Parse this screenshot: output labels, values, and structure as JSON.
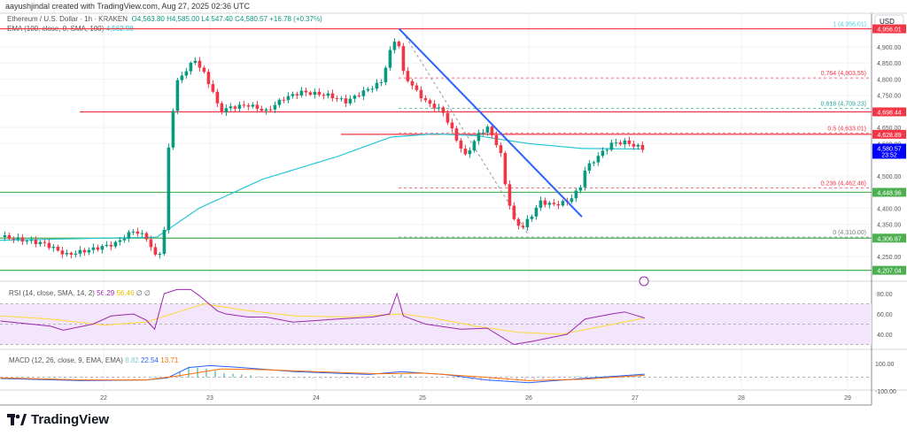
{
  "header": {
    "credit": "aayushjindal created with TradingView.com, Aug 27, 2025 02:36 UTC"
  },
  "legend": {
    "symbol": "Ethereum / U.S. Dollar · 1h · KRAKEN",
    "open": "O4,563.80",
    "high": "H4,585.00",
    "low": "L4,547.40",
    "close": "C4,580.57",
    "change": "+16.78 (+0.37%)",
    "ema_label": "EMA (100, close, 0, SMA, 100)",
    "ema_value": "4,562.98"
  },
  "rsi_legend": {
    "label": "RSI (14, close, SMA, 14, 2)",
    "rsi": "56.29",
    "sma": "56.46",
    "extra1": "∅",
    "extra2": "∅"
  },
  "macd_legend": {
    "label": "MACD (12, 26, close, 9, EMA, EMA)",
    "hist": "8.82",
    "macd": "22.54",
    "signal": "13.71"
  },
  "price_axis": {
    "currency": "USD",
    "ticks": [
      "4,900.00",
      "4,850.00",
      "4,800.00",
      "4,750.00",
      "4,650.00",
      "4,600.00",
      "4,500.00",
      "4,400.00",
      "4,350.00",
      "4,250.00"
    ],
    "tick_values": [
      4900,
      4850,
      4800,
      4750,
      4650,
      4600,
      4500,
      4400,
      4350,
      4250
    ]
  },
  "rsi_axis": {
    "ticks": [
      "80.00",
      "60.00",
      "40.00"
    ],
    "values": [
      80,
      60,
      40
    ]
  },
  "macd_axis": {
    "ticks": [
      "100.00",
      "-100.00"
    ],
    "values": [
      100,
      -100
    ]
  },
  "time_axis": {
    "ticks": [
      "22",
      "23",
      "24",
      "25",
      "26",
      "27",
      "28",
      "29"
    ]
  },
  "colors": {
    "up": "#089981",
    "down": "#f23645",
    "ema": "#26c6da",
    "resistance": "#f23645",
    "support": "#4caf50",
    "trendline": "#2962ff",
    "rsi": "#9c27b0",
    "rsi_sma": "#fdd835",
    "macd": "#2962ff",
    "signal": "#ff6d00",
    "last_price": "#0000ff"
  },
  "branding": {
    "logo_text": "TradingView"
  },
  "chart_data": {
    "type": "candlestick",
    "title": "Ethereum / U.S. Dollar · 1h · KRAKEN",
    "ylim": [
      4190,
      4975
    ],
    "xlim": [
      21.0,
      29.2
    ],
    "price_path": [
      [
        21.07,
        4310
      ],
      [
        21.44,
        4290
      ],
      [
        21.65,
        4255
      ],
      [
        21.86,
        4270
      ],
      [
        22.11,
        4290
      ],
      [
        22.28,
        4330
      ],
      [
        22.4,
        4310
      ],
      [
        22.51,
        4235
      ],
      [
        22.57,
        4330
      ],
      [
        22.61,
        4580
      ],
      [
        22.65,
        4700
      ],
      [
        22.69,
        4790
      ],
      [
        22.78,
        4830
      ],
      [
        22.86,
        4860
      ],
      [
        22.94,
        4820
      ],
      [
        23.03,
        4760
      ],
      [
        23.09,
        4700
      ],
      [
        23.19,
        4712
      ],
      [
        23.36,
        4720
      ],
      [
        23.53,
        4700
      ],
      [
        23.69,
        4740
      ],
      [
        23.86,
        4760
      ],
      [
        24.11,
        4750
      ],
      [
        24.28,
        4730
      ],
      [
        24.44,
        4760
      ],
      [
        24.61,
        4790
      ],
      [
        24.69,
        4880
      ],
      [
        24.76,
        4940
      ],
      [
        24.82,
        4820
      ],
      [
        24.9,
        4780
      ],
      [
        25.03,
        4730
      ],
      [
        25.19,
        4700
      ],
      [
        25.28,
        4640
      ],
      [
        25.4,
        4560
      ],
      [
        25.53,
        4630
      ],
      [
        25.61,
        4650
      ],
      [
        25.73,
        4580
      ],
      [
        25.79,
        4450
      ],
      [
        25.86,
        4360
      ],
      [
        25.94,
        4340
      ],
      [
        26.03,
        4380
      ],
      [
        26.11,
        4420
      ],
      [
        26.23,
        4410
      ],
      [
        26.36,
        4420
      ],
      [
        26.48,
        4460
      ],
      [
        26.53,
        4520
      ],
      [
        26.65,
        4560
      ],
      [
        26.78,
        4600
      ],
      [
        26.9,
        4605
      ],
      [
        27.03,
        4590
      ],
      [
        27.09,
        4581
      ]
    ],
    "ema_path": [
      [
        21.0,
        4300
      ],
      [
        22.5,
        4310
      ],
      [
        22.9,
        4400
      ],
      [
        23.5,
        4490
      ],
      [
        24.2,
        4560
      ],
      [
        24.7,
        4620
      ],
      [
        25.1,
        4630
      ],
      [
        25.5,
        4625
      ],
      [
        26.0,
        4600
      ],
      [
        26.5,
        4585
      ],
      [
        27.09,
        4583
      ]
    ],
    "horizontal_levels": [
      {
        "price": 4956.01,
        "label": "4,956.01",
        "type": "resistance"
      },
      {
        "price": 4698.44,
        "label": "4,698.44",
        "type": "resistance"
      },
      {
        "price": 4628.89,
        "label": "4,628.89",
        "type": "resistance"
      },
      {
        "price": 4448.96,
        "label": "4,448.96",
        "type": "support"
      },
      {
        "price": 4306.87,
        "label": "4,306.87",
        "type": "support"
      },
      {
        "price": 4207.04,
        "label": "4,207.04",
        "type": "support"
      }
    ],
    "last_price": {
      "price": 4580.57,
      "label": "4,580.57",
      "countdown": "23:52"
    },
    "fibonacci": [
      {
        "ratio": "1",
        "price": 4956.01,
        "label": "1 (4,956.01)",
        "color": "#4dd0e1"
      },
      {
        "ratio": "0.764",
        "price": 4803.55,
        "label": "0.764 (4,803.55)",
        "color": "#f23645"
      },
      {
        "ratio": "0.618",
        "price": 4709.23,
        "label": "0.618 (4,709.23)",
        "color": "#26a69a"
      },
      {
        "ratio": "0.5",
        "price": 4633.01,
        "label": "0.5 (4,633.01)",
        "color": "#f23645"
      },
      {
        "ratio": "0.236",
        "price": 4462.46,
        "label": "0.236 (4,462.46)",
        "color": "#f23645"
      },
      {
        "ratio": "0",
        "price": 4310.0,
        "label": "0 (4,310.00)",
        "color": "#787b86"
      }
    ],
    "trendline": {
      "start": [
        24.78,
        4956
      ],
      "end": [
        26.5,
        4373
      ]
    },
    "rsi_path": [
      [
        21.03,
        53
      ],
      [
        21.5,
        48
      ],
      [
        21.62,
        44
      ],
      [
        21.9,
        50
      ],
      [
        22.07,
        58
      ],
      [
        22.28,
        60
      ],
      [
        22.4,
        54
      ],
      [
        22.48,
        45
      ],
      [
        22.57,
        80
      ],
      [
        22.69,
        84
      ],
      [
        22.82,
        84
      ],
      [
        22.9,
        78
      ],
      [
        23.07,
        63
      ],
      [
        23.15,
        60
      ],
      [
        23.36,
        57
      ],
      [
        23.53,
        57
      ],
      [
        23.78,
        52
      ],
      [
        24.2,
        55
      ],
      [
        24.53,
        57
      ],
      [
        24.69,
        60
      ],
      [
        24.76,
        80
      ],
      [
        24.82,
        58
      ],
      [
        25.03,
        50
      ],
      [
        25.36,
        45
      ],
      [
        25.61,
        46
      ],
      [
        25.78,
        35
      ],
      [
        25.86,
        30
      ],
      [
        26.03,
        33
      ],
      [
        26.36,
        40
      ],
      [
        26.53,
        55
      ],
      [
        26.78,
        60
      ],
      [
        26.9,
        62
      ],
      [
        27.03,
        58
      ],
      [
        27.09,
        56
      ]
    ],
    "rsi_sma_path": [
      [
        21.03,
        58
      ],
      [
        21.5,
        55
      ],
      [
        22.0,
        49
      ],
      [
        22.4,
        52
      ],
      [
        22.7,
        62
      ],
      [
        22.95,
        70
      ],
      [
        23.3,
        64
      ],
      [
        23.8,
        58
      ],
      [
        24.3,
        57
      ],
      [
        24.8,
        60
      ],
      [
        25.1,
        56
      ],
      [
        25.5,
        48
      ],
      [
        25.9,
        42
      ],
      [
        26.3,
        40
      ],
      [
        26.7,
        48
      ],
      [
        27.09,
        56
      ]
    ],
    "macd_path": [
      [
        21.03,
        -10
      ],
      [
        21.8,
        -25
      ],
      [
        22.4,
        -20
      ],
      [
        22.6,
        -5
      ],
      [
        22.8,
        70
      ],
      [
        23.0,
        85
      ],
      [
        23.3,
        70
      ],
      [
        23.8,
        40
      ],
      [
        24.5,
        20
      ],
      [
        24.8,
        40
      ],
      [
        25.2,
        20
      ],
      [
        25.6,
        -20
      ],
      [
        26.0,
        -40
      ],
      [
        26.5,
        -10
      ],
      [
        27.09,
        22
      ]
    ],
    "signal_path": [
      [
        21.03,
        -5
      ],
      [
        21.8,
        -20
      ],
      [
        22.4,
        -20
      ],
      [
        22.7,
        10
      ],
      [
        23.1,
        60
      ],
      [
        23.5,
        55
      ],
      [
        24.0,
        40
      ],
      [
        24.6,
        25
      ],
      [
        25.0,
        30
      ],
      [
        25.5,
        5
      ],
      [
        26.0,
        -25
      ],
      [
        26.5,
        -15
      ],
      [
        27.09,
        14
      ]
    ]
  }
}
